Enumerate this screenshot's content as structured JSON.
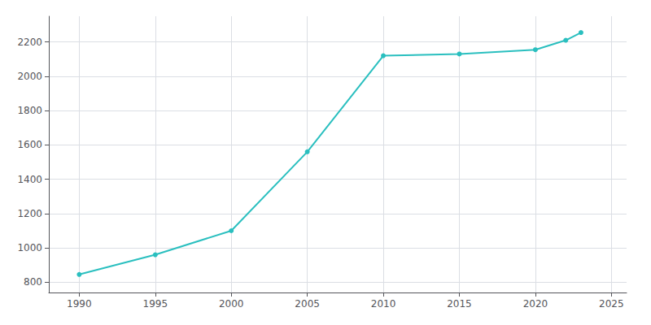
{
  "chart_data": {
    "type": "line",
    "x": [
      1990,
      1995,
      2000,
      2005,
      2010,
      2015,
      2020,
      2022,
      2023
    ],
    "values": [
      845,
      960,
      1100,
      1560,
      2120,
      2130,
      2155,
      2210,
      2255
    ],
    "color": "#2abfbf",
    "marker": "circle",
    "xlim": [
      1988,
      2026
    ],
    "ylim": [
      740,
      2350
    ],
    "xticks": [
      1990,
      1995,
      2000,
      2005,
      2010,
      2015,
      2020,
      2025
    ],
    "yticks": [
      800,
      1000,
      1200,
      1400,
      1600,
      1800,
      2000,
      2200
    ],
    "grid": true
  }
}
